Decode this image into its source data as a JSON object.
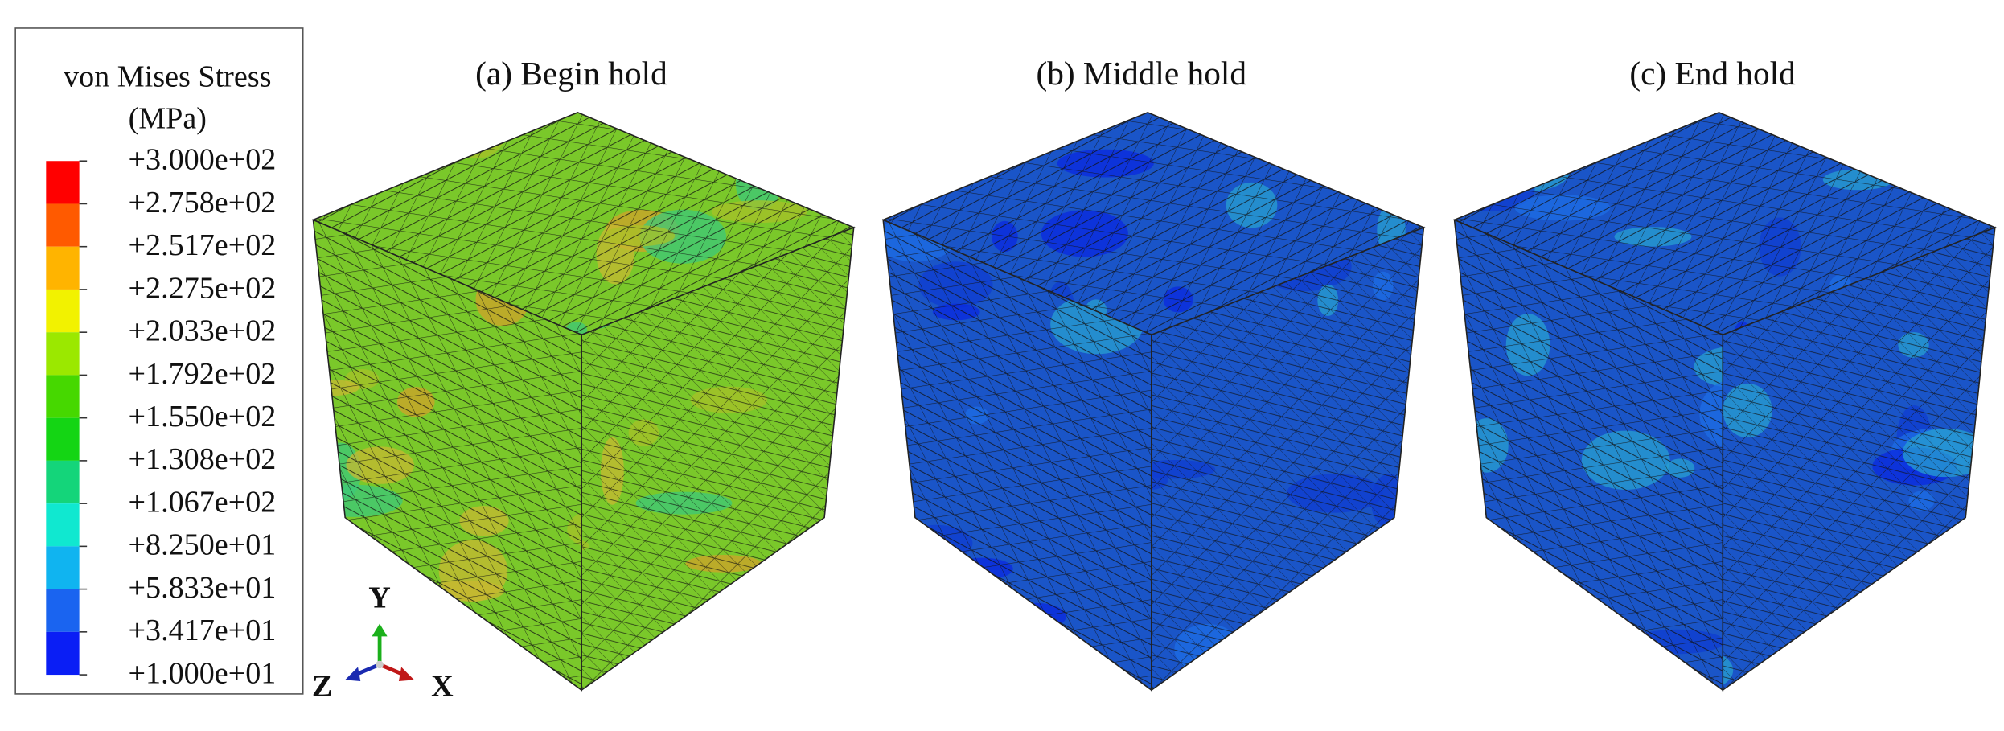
{
  "legend": {
    "title": "von Mises Stress",
    "unit": "(MPa)",
    "levels": [
      "+3.000e+02",
      "+2.758e+02",
      "+2.517e+02",
      "+2.275e+02",
      "+2.033e+02",
      "+1.792e+02",
      "+1.550e+02",
      "+1.308e+02",
      "+1.067e+02",
      "+8.250e+01",
      "+5.833e+01",
      "+3.417e+01",
      "+1.000e+01"
    ],
    "colors": [
      "#ff0000",
      "#ff5a00",
      "#ffb400",
      "#f2f200",
      "#9be800",
      "#46d800",
      "#14d514",
      "#14d57a",
      "#10e8d0",
      "#10b4f0",
      "#1a64f0",
      "#0a1ef5"
    ]
  },
  "panels": [
    {
      "title": "(a) Begin hold",
      "base": "#7ac82a",
      "patch": [
        "#c8b832",
        "#d2a22a",
        "#3cc87a",
        "#a8c028"
      ]
    },
    {
      "title": "(b) Middle hold",
      "base": "#1a55c8",
      "patch": [
        "#0a28e0",
        "#28a0d0",
        "#1e6ee6",
        "#0f3cd2"
      ]
    },
    {
      "title": "(c) End hold",
      "base": "#1a55c8",
      "patch": [
        "#0a28e0",
        "#28a0d0",
        "#1e6ee6",
        "#0f3cd2"
      ]
    }
  ],
  "triad": {
    "y": "Y",
    "z": "Z",
    "x": "X"
  }
}
